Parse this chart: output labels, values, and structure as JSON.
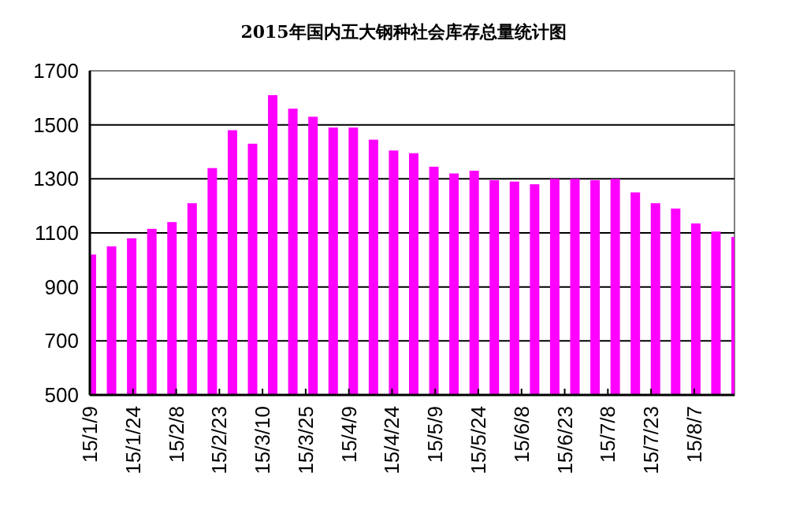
{
  "chart_data": {
    "type": "bar",
    "title": "2015年国内五大钢种社会库存总量统计图",
    "x": [
      "2015-01-09",
      "2015-01-16",
      "2015-01-23",
      "2015-01-30",
      "2015-02-06",
      "2015-02-13",
      "2015-02-20",
      "2015-02-27",
      "2015-03-06",
      "2015-03-13",
      "2015-03-20",
      "2015-03-27",
      "2015-04-03",
      "2015-04-10",
      "2015-04-17",
      "2015-04-24",
      "2015-05-01",
      "2015-05-08",
      "2015-05-15",
      "2015-05-22",
      "2015-05-29",
      "2015-06-05",
      "2015-06-12",
      "2015-06-19",
      "2015-06-26",
      "2015-07-03",
      "2015-07-10",
      "2015-07-17",
      "2015-07-24",
      "2015-07-31",
      "2015-08-07",
      "2015-08-14",
      "2015-08-21"
    ],
    "values": [
      1020,
      1050,
      1080,
      1115,
      1140,
      1210,
      1340,
      1480,
      1430,
      1610,
      1560,
      1530,
      1490,
      1490,
      1445,
      1405,
      1395,
      1345,
      1320,
      1330,
      1295,
      1290,
      1280,
      1300,
      1300,
      1295,
      1300,
      1250,
      1210,
      1190,
      1135,
      1105,
      1085
    ],
    "color": "#ff00ff",
    "xlim": [
      "2015-01-09",
      "2015-08-21"
    ],
    "xticks": [
      {
        "value": "2015-01-09",
        "label": "15/1/9"
      },
      {
        "value": "2015-01-24",
        "label": "15/1/24"
      },
      {
        "value": "2015-02-08",
        "label": "15/2/8"
      },
      {
        "value": "2015-02-23",
        "label": "15/2/23"
      },
      {
        "value": "2015-03-10",
        "label": "15/3/10"
      },
      {
        "value": "2015-03-25",
        "label": "15/3/25"
      },
      {
        "value": "2015-04-09",
        "label": "15/4/9"
      },
      {
        "value": "2015-04-24",
        "label": "15/4/24"
      },
      {
        "value": "2015-05-09",
        "label": "15/5/9"
      },
      {
        "value": "2015-05-24",
        "label": "15/5/24"
      },
      {
        "value": "2015-06-08",
        "label": "15/6/8"
      },
      {
        "value": "2015-06-23",
        "label": "15/6/23"
      },
      {
        "value": "2015-07-08",
        "label": "15/7/8"
      },
      {
        "value": "2015-07-23",
        "label": "15/7/23"
      },
      {
        "value": "2015-08-07",
        "label": "15/8/7"
      }
    ],
    "ylim": [
      500,
      1700
    ],
    "yticks": [
      500,
      700,
      900,
      1100,
      1300,
      1500,
      1700
    ],
    "grid": "y"
  }
}
